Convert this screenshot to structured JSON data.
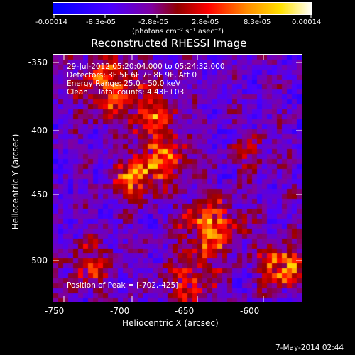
{
  "colorbar": {
    "ticks": [
      "-0.00014",
      "-8.3e-05",
      "-2.8e-05",
      "2.8e-05",
      "8.3e-05",
      "0.00014"
    ],
    "units": "(photons cm⁻² s⁻¹ asec⁻²)"
  },
  "title": "Reconstructed RHESSI Image",
  "info": {
    "line1": "29-Jul-2012 05:20:04.000 to 05:24:32.000",
    "line2": "Detectors: 3F 5F 6F 7F 8F 9F, Att 0",
    "line3": "Energy Range: 25.0 - 50.0 keV",
    "line4": "Clean    Total counts: 4.43E+03"
  },
  "peak_label": "Position of Peak = [-702,-425]",
  "axes": {
    "x_label": "Heliocentric X (arcsec)",
    "y_label": "Heliocentric Y (arcsec)",
    "x_ticks": [
      "-750",
      "-700",
      "-650",
      "-600"
    ],
    "y_ticks": [
      "-350",
      "-400",
      "-450",
      "-500"
    ]
  },
  "footer_timestamp": "7-May-2014 02:44",
  "colors": {
    "background": "#000000",
    "colormap": [
      "#0000ff",
      "#3a00ff",
      "#6a00c8",
      "#8000a0",
      "#c00000",
      "#ff0000",
      "#ff7a00",
      "#ffd800",
      "#ffffff"
    ]
  }
}
